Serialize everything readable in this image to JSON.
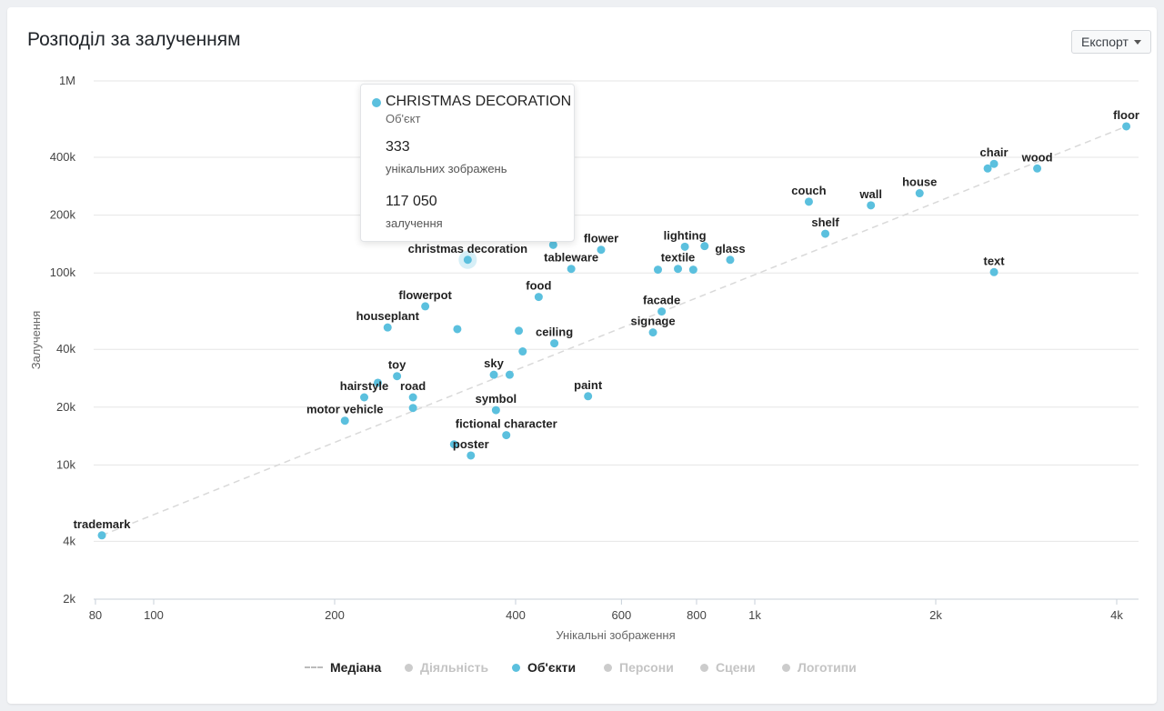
{
  "header": {
    "title": "Розподіл за залученням",
    "export_label": "Експорт"
  },
  "tooltip": {
    "title": "CHRISTMAS DECORATION",
    "subtitle": "Об'єкт",
    "unique_value": "333",
    "unique_label": "унікальних зображень",
    "engagement_value": "117 050",
    "engagement_label": "залучення"
  },
  "legend": {
    "median": "Медіана",
    "activity": "Діяльність",
    "objects": "Об'єкти",
    "personas": "Персони",
    "scenes": "Сцени",
    "logos": "Логотипи"
  },
  "colors": {
    "objects": "#5bc0de",
    "median": "#d9d9d9",
    "disabled": "#cccccc",
    "grid": "#e6e6e6"
  },
  "chart_data": {
    "type": "scatter",
    "title": "Розподіл за залученням",
    "xlabel": "Унікальні зображення",
    "ylabel": "Залучення",
    "xscale": "log",
    "yscale": "log",
    "xlim": [
      78,
      4300
    ],
    "ylim": [
      2000,
      1000000
    ],
    "xticks": [
      80,
      100,
      200,
      400,
      600,
      800,
      1000,
      2000,
      4000
    ],
    "xtick_labels": [
      "80",
      "100",
      "200",
      "400",
      "600",
      "800",
      "1k",
      "2k",
      "4k"
    ],
    "yticks": [
      2000,
      4000,
      10000,
      20000,
      40000,
      100000,
      200000,
      400000,
      1000000
    ],
    "ytick_labels": [
      "2k",
      "4k",
      "10k",
      "20k",
      "40k",
      "100k",
      "200k",
      "400k",
      "1M"
    ],
    "median_line": {
      "name": "Медіана",
      "x": [
        82,
        4150
      ],
      "y": [
        4300,
        580000
      ]
    },
    "highlighted": "christmas decoration",
    "series": [
      {
        "name": "Об'єкти",
        "points": [
          {
            "label": "floor",
            "x": 4150,
            "y": 580000
          },
          {
            "label": "chair",
            "x": 2500,
            "y": 370000
          },
          {
            "label": "",
            "x": 2440,
            "y": 350000
          },
          {
            "label": "wood",
            "x": 2950,
            "y": 350000
          },
          {
            "label": "house",
            "x": 1880,
            "y": 260000
          },
          {
            "label": "wall",
            "x": 1560,
            "y": 225000
          },
          {
            "label": "couch",
            "x": 1230,
            "y": 235000
          },
          {
            "label": "shelf",
            "x": 1310,
            "y": 160000
          },
          {
            "label": "text",
            "x": 2500,
            "y": 101000
          },
          {
            "label": "lighting",
            "x": 765,
            "y": 137000
          },
          {
            "label": "",
            "x": 825,
            "y": 138000
          },
          {
            "label": "glass",
            "x": 910,
            "y": 117000
          },
          {
            "label": "textile",
            "x": 745,
            "y": 105000
          },
          {
            "label": "",
            "x": 690,
            "y": 104000
          },
          {
            "label": "",
            "x": 790,
            "y": 104000
          },
          {
            "label": "flower",
            "x": 555,
            "y": 132000
          },
          {
            "label": "",
            "x": 462,
            "y": 140000
          },
          {
            "label": "tableware",
            "x": 495,
            "y": 105000
          },
          {
            "label": "christmas decoration",
            "x": 333,
            "y": 117050
          },
          {
            "label": "food",
            "x": 437,
            "y": 75000
          },
          {
            "label": "facade",
            "x": 700,
            "y": 63000
          },
          {
            "label": "signage",
            "x": 677,
            "y": 49000
          },
          {
            "label": "flowerpot",
            "x": 283,
            "y": 67000
          },
          {
            "label": "houseplant",
            "x": 245,
            "y": 52000
          },
          {
            "label": "",
            "x": 320,
            "y": 51000
          },
          {
            "label": "",
            "x": 405,
            "y": 50000
          },
          {
            "label": "ceiling",
            "x": 464,
            "y": 43000
          },
          {
            "label": "",
            "x": 411,
            "y": 39000
          },
          {
            "label": "sky",
            "x": 368,
            "y": 29500
          },
          {
            "label": "",
            "x": 391,
            "y": 29500
          },
          {
            "label": "toy",
            "x": 254,
            "y": 29000
          },
          {
            "label": "",
            "x": 236,
            "y": 26800
          },
          {
            "label": "hairstyle",
            "x": 224,
            "y": 22500
          },
          {
            "label": "road",
            "x": 270,
            "y": 22500
          },
          {
            "label": "",
            "x": 270,
            "y": 19800
          },
          {
            "label": "paint",
            "x": 528,
            "y": 22800
          },
          {
            "label": "symbol",
            "x": 371,
            "y": 19300
          },
          {
            "label": "motor vehicle",
            "x": 208,
            "y": 17000
          },
          {
            "label": "fictional character",
            "x": 386,
            "y": 14300
          },
          {
            "label": "",
            "x": 316,
            "y": 12800
          },
          {
            "label": "poster",
            "x": 337,
            "y": 11200
          },
          {
            "label": "trademark",
            "x": 82,
            "y": 4300
          }
        ]
      }
    ]
  }
}
